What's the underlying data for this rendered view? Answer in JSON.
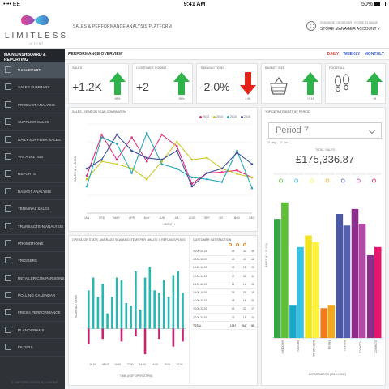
{
  "statusbar": {
    "carrier": "•••• EE",
    "time": "9:41 AM",
    "battery": "50%"
  },
  "header": {
    "logo_word": "LIMITLESS",
    "logo_sub": "INTENT",
    "title": "SALES & PERFORMANCE ANALYSIS PLATFORM",
    "user_name": "SUNSHINE CROSSGAR • STORE 33 MAINE",
    "user_role": "STORE MANAGER ACCOUNT ˅"
  },
  "sidebar": {
    "heading": "MAIN DASHBOARD & REPORTING",
    "items": [
      {
        "label": "DASHBOARD",
        "active": true
      },
      {
        "label": "SALES SUMMARY"
      },
      {
        "label": "PRODUCT ANALYSIS"
      },
      {
        "label": "SUPPLIER SALES"
      },
      {
        "label": "DAILY SUPPLIER SALES"
      },
      {
        "label": "VAT ANALYSIS"
      },
      {
        "label": "REPORTS"
      },
      {
        "label": "BASKET ANALYSIS"
      },
      {
        "label": "TERMINAL SALES"
      },
      {
        "label": "TRANSACTION ANALYSIS"
      },
      {
        "label": "PROMOTIONS"
      },
      {
        "label": "TRIGGERS"
      },
      {
        "label": "RETAILER COMPARISONS"
      },
      {
        "label": "POLLING CALENDAR"
      },
      {
        "label": "FRESH PERFORMANCE"
      },
      {
        "label": "PLANOGRAMS"
      },
      {
        "label": "FILTERS"
      }
    ],
    "footer": "© LIMITLESS DIGITAL SOLUTIONS"
  },
  "overview": {
    "title": "PERFORMANCE OVERVIEW",
    "periods": [
      "DAILY",
      "WEEKLY",
      "MONTHLY"
    ]
  },
  "kpis": [
    {
      "label": "SALES",
      "value": "+1.2K",
      "pct": "99%",
      "dir": "up",
      "color": "#2db34a"
    },
    {
      "label": "CUSTOMER COMMS",
      "value": "+2",
      "pct": "99%",
      "dir": "up",
      "color": "#2db34a"
    },
    {
      "label": "TRANSACTIONS",
      "value": "-2.0%",
      "pct": "1.9K",
      "dir": "down",
      "color": "#e2231a"
    },
    {
      "label": "BASKET SIZE",
      "value": "",
      "pct": "+7.43",
      "dir": "up",
      "color": "#2db34a"
    },
    {
      "label": "FOOTFALL",
      "value": "",
      "pct": "+8",
      "dir": "up",
      "color": "#2db34a"
    }
  ],
  "colors": {
    "s2013": "#e0337a",
    "s2014": "#cbc82a",
    "s2015": "#2aa7b9",
    "s2016": "#3b4f9e"
  },
  "line_panel": {
    "title": "SALES - YEAR ON YEAR COMPARISON",
    "ylabel": "SALES (£ x 10,000)",
    "xlabel": "MONTH",
    "legend": [
      "2013",
      "2014",
      "2015",
      "2016"
    ],
    "months": [
      "JAN",
      "FEB",
      "MAR",
      "APR",
      "MAY",
      "JUN",
      "JUL",
      "AUG",
      "SEP",
      "OCT",
      "NOV",
      "DEC"
    ]
  },
  "top_panel": {
    "title": "TOP DEPARTMENTS BY PERIOD",
    "period": "Period 7",
    "daterange": "14 May – 10 Jun",
    "total_label": "TOTAL SALES",
    "total_value": "£175,336.87",
    "ylabel": "SALES (£ x 10,000)",
    "xlabel": "DEPARTMENTS (2016 / 2017)",
    "departments": [
      "GROCERY",
      "FROZEN",
      "DAIRY/CHILL",
      "FRESH",
      "BAKERY",
      "TOBACCO",
      "CONFECT."
    ]
  },
  "ops_panel": {
    "title": "OPERATOR STATS - AVERAGE SCANNED ITEMS PER MINUTE V REFUNDS/VOIDS",
    "ylabel": "SCANNED ITEMS",
    "xlabel": "TIME (# OF OPERATORS)",
    "times": [
      "06:00",
      "08:00",
      "10:00",
      "12:00",
      "14:00",
      "16:00",
      "18:00",
      "20:00"
    ]
  },
  "satisfaction": {
    "title": "CUSTOMER SATISFACTION",
    "rows": [
      [
        "06:00-08:00",
        "48",
        "32",
        "35"
      ],
      [
        "08:00-10:00",
        "42",
        "45",
        "42"
      ],
      [
        "10:00-12:00",
        "33",
        "28",
        "22"
      ],
      [
        "12:00-14:00",
        "47",
        "36",
        "34"
      ],
      [
        "14:00-16:00",
        "41",
        "14",
        "22"
      ],
      [
        "16:00-18:00",
        "29",
        "28",
        "19"
      ],
      [
        "18:00-20:00",
        "38",
        "19",
        "22"
      ],
      [
        "20:00-22:00",
        "26",
        "32",
        "17"
      ],
      [
        "22:00-24:00",
        "32",
        "19",
        "24"
      ]
    ],
    "total": [
      "TOTAL",
      "1747",
      "947",
      "83"
    ]
  },
  "chart_data": [
    {
      "type": "line",
      "title": "SALES - YEAR ON YEAR COMPARISON",
      "xlabel": "MONTH",
      "ylabel": "SALES (£ x 10,000)",
      "categories": [
        "JAN",
        "FEB",
        "MAR",
        "APR",
        "MAY",
        "JUN",
        "JUL",
        "AUG",
        "SEP",
        "OCT",
        "NOV",
        "DEC"
      ],
      "ylim": [
        0,
        100
      ],
      "series": [
        {
          "name": "2013",
          "values": [
            42,
            88,
            60,
            85,
            58,
            88,
            75,
            33,
            45,
            46,
            48,
            40
          ]
        },
        {
          "name": "2014",
          "values": [
            38,
            58,
            55,
            50,
            38,
            58,
            80,
            60,
            62,
            50,
            44,
            40
          ]
        },
        {
          "name": "2015",
          "values": [
            30,
            85,
            78,
            45,
            90,
            55,
            50,
            40,
            38,
            35,
            70,
            28
          ]
        },
        {
          "name": "2016",
          "values": [
            50,
            60,
            88,
            70,
            62,
            60,
            70,
            30,
            45,
            50,
            68,
            55
          ]
        }
      ]
    },
    {
      "type": "bar",
      "title": "TOP DEPARTMENTS BY PERIOD",
      "xlabel": "DEPARTMENTS (2016 / 2017)",
      "ylabel": "SALES (£ x 10,000)",
      "categories": [
        "GROCERY",
        "FROZEN",
        "DAIRY/CHILL",
        "FRESH",
        "BAKERY",
        "TOBACCO",
        "CONFECT."
      ],
      "ylim": [
        0,
        100
      ],
      "series": [
        {
          "name": "2016",
          "values": [
            72,
            20,
            62,
            18,
            75,
            78,
            50
          ],
          "colors": [
            "#3aa544",
            "#16a8c6",
            "#f2e41c",
            "#f07d1c",
            "#4b58a5",
            "#8d2d8c",
            "#8d2d8c"
          ]
        },
        {
          "name": "2017",
          "values": [
            82,
            55,
            58,
            20,
            68,
            69,
            55
          ],
          "colors": [
            "#5dc038",
            "#37c2e5",
            "#fff23d",
            "#f6a81d",
            "#5361b0",
            "#b14aa5",
            "#e4166e"
          ]
        }
      ]
    },
    {
      "type": "bar",
      "title": "OPERATOR STATS - AVERAGE SCANNED ITEMS PER MINUTE V REFUNDS/VOIDS",
      "xlabel": "TIME (# OF OPERATORS)",
      "ylabel": "SCANNED ITEMS",
      "ylim": [
        -25,
        60
      ],
      "series": [
        {
          "name": "Scanned",
          "values": [
            30,
            40,
            25,
            35,
            12,
            25,
            40,
            38,
            20,
            18,
            45,
            15,
            40,
            48,
            30,
            28,
            38,
            25,
            42,
            45,
            28
          ]
        },
        {
          "name": "Refunds/Voids",
          "values": [
            -12,
            0,
            0,
            -8,
            0,
            0,
            0,
            -10,
            0,
            0,
            -6,
            0,
            -20,
            0,
            0,
            -8,
            0,
            0,
            -14,
            0,
            -10
          ]
        }
      ]
    }
  ]
}
